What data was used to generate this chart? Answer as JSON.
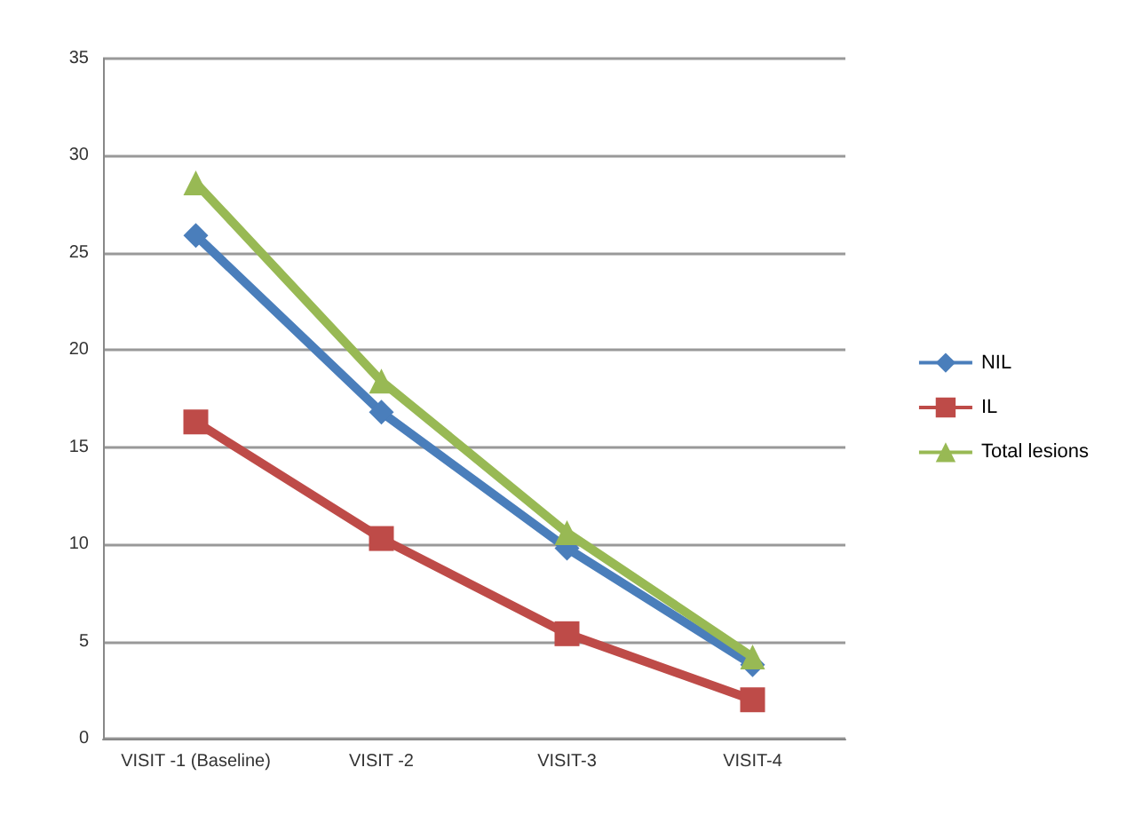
{
  "chart_data": {
    "type": "line",
    "categories": [
      "VISIT -1 (Baseline)",
      "VISIT -2",
      "VISIT-3",
      "VISIT-4"
    ],
    "series": [
      {
        "name": "NIL",
        "color": "#4a7ebb",
        "marker": "diamond",
        "values": [
          25.9,
          16.8,
          9.8,
          3.8
        ]
      },
      {
        "name": "IL",
        "color": "#be4b48",
        "marker": "square",
        "values": [
          16.3,
          10.3,
          5.4,
          2.0
        ]
      },
      {
        "name": "Total lesions",
        "color": "#98b954",
        "marker": "triangle",
        "values": [
          28.6,
          18.4,
          10.6,
          4.2
        ]
      }
    ],
    "ylim": [
      0,
      35
    ],
    "yticks": [
      0,
      5,
      10,
      15,
      20,
      25,
      30,
      35
    ],
    "grid": "y",
    "legend": "right",
    "line_style": "solid"
  }
}
